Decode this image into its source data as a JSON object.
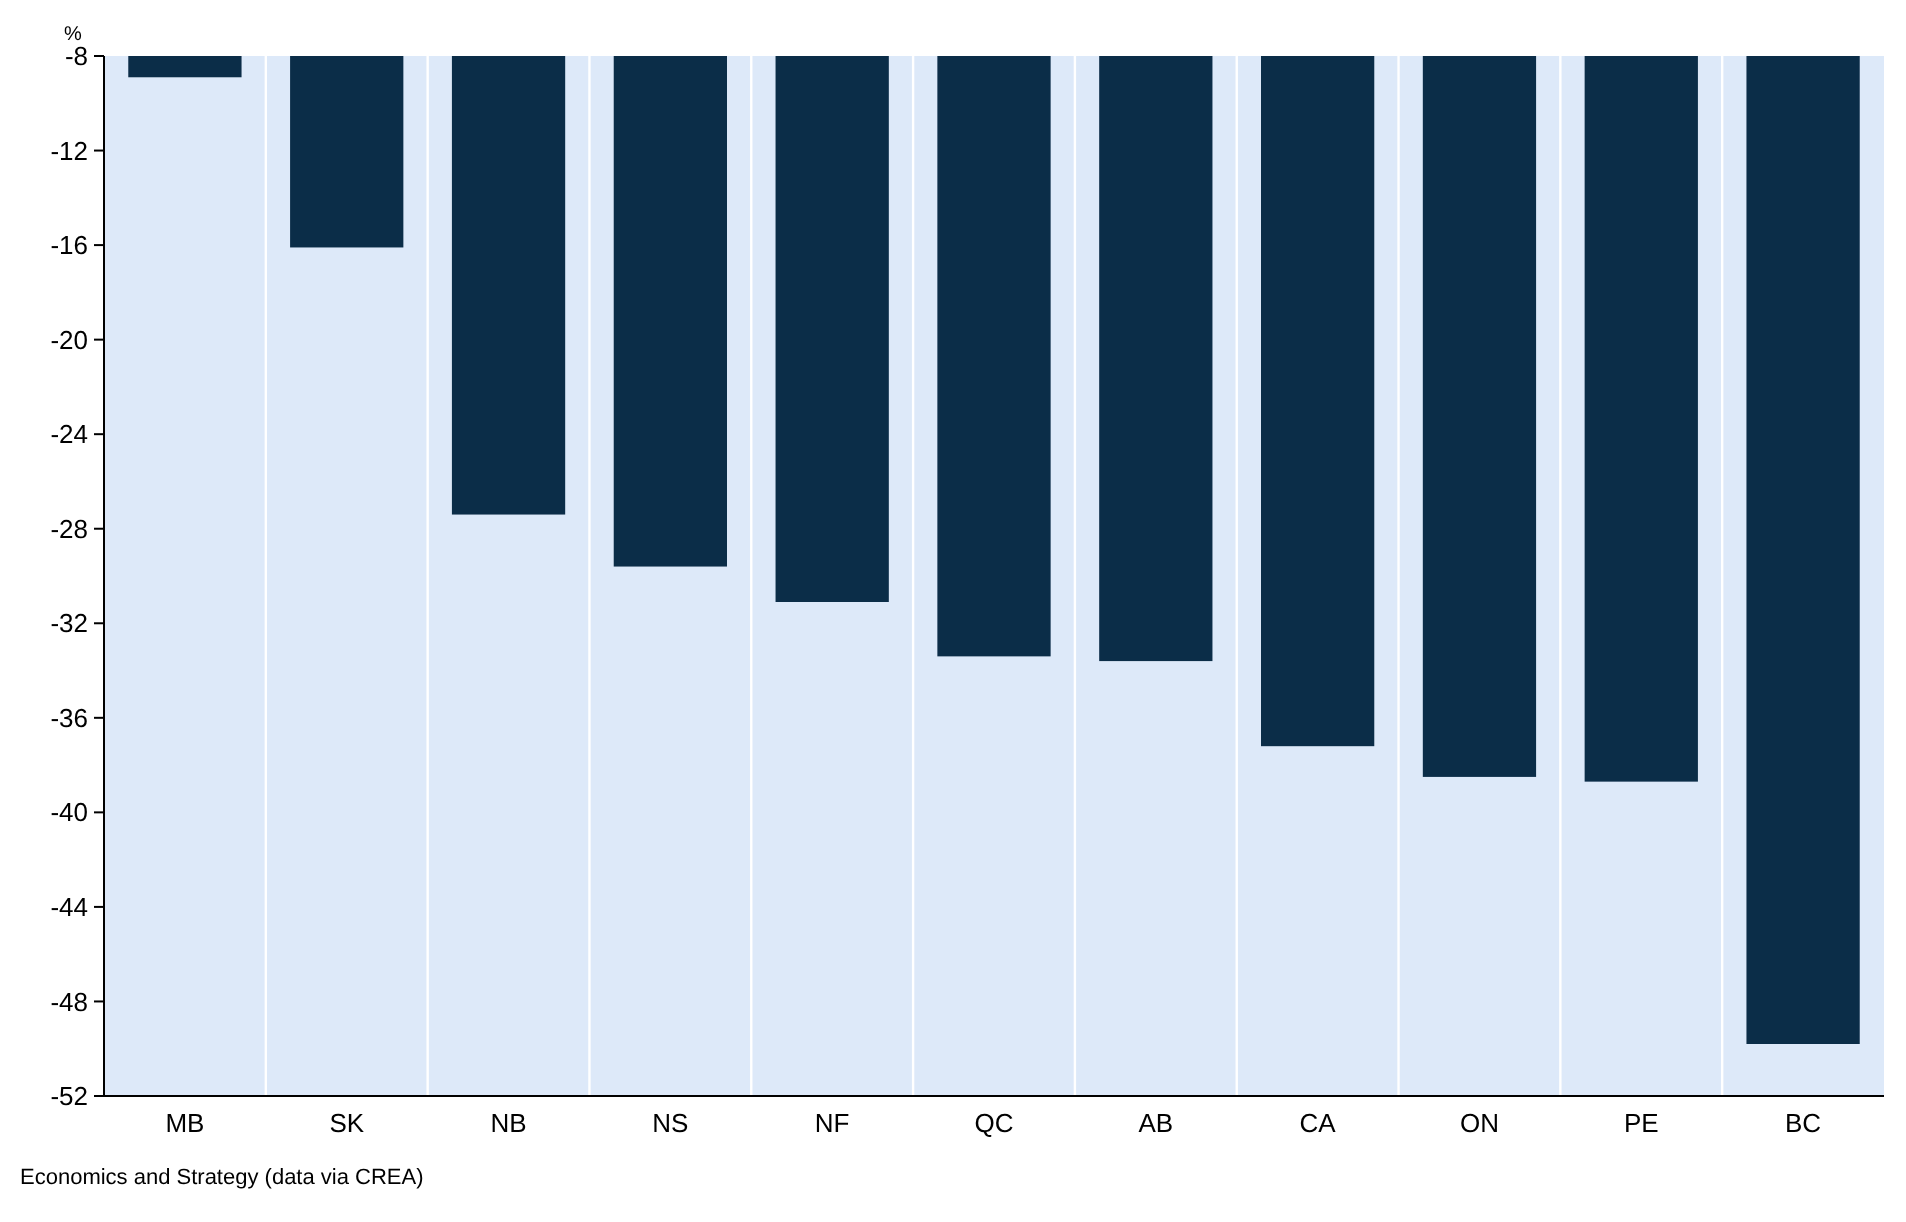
{
  "chart_data": {
    "type": "bar",
    "ylabel": "%",
    "categories": [
      "MB",
      "SK",
      "NB",
      "NS",
      "NF",
      "QC",
      "AB",
      "CA",
      "ON",
      "PE",
      "BC"
    ],
    "values": [
      -8.9,
      -16.1,
      -27.4,
      -29.6,
      -31.1,
      -33.4,
      -33.6,
      -37.2,
      -38.5,
      -38.7,
      -49.8
    ],
    "color": "#0b2d48",
    "ylim": [
      -52,
      -8
    ],
    "yticks": [
      -52,
      -48,
      -44,
      -40,
      -36,
      -32,
      -28,
      -24,
      -20,
      -16,
      -12,
      -8
    ],
    "grid": "x",
    "annotations": [
      "Economics and Strategy (data via CREA)"
    ]
  }
}
